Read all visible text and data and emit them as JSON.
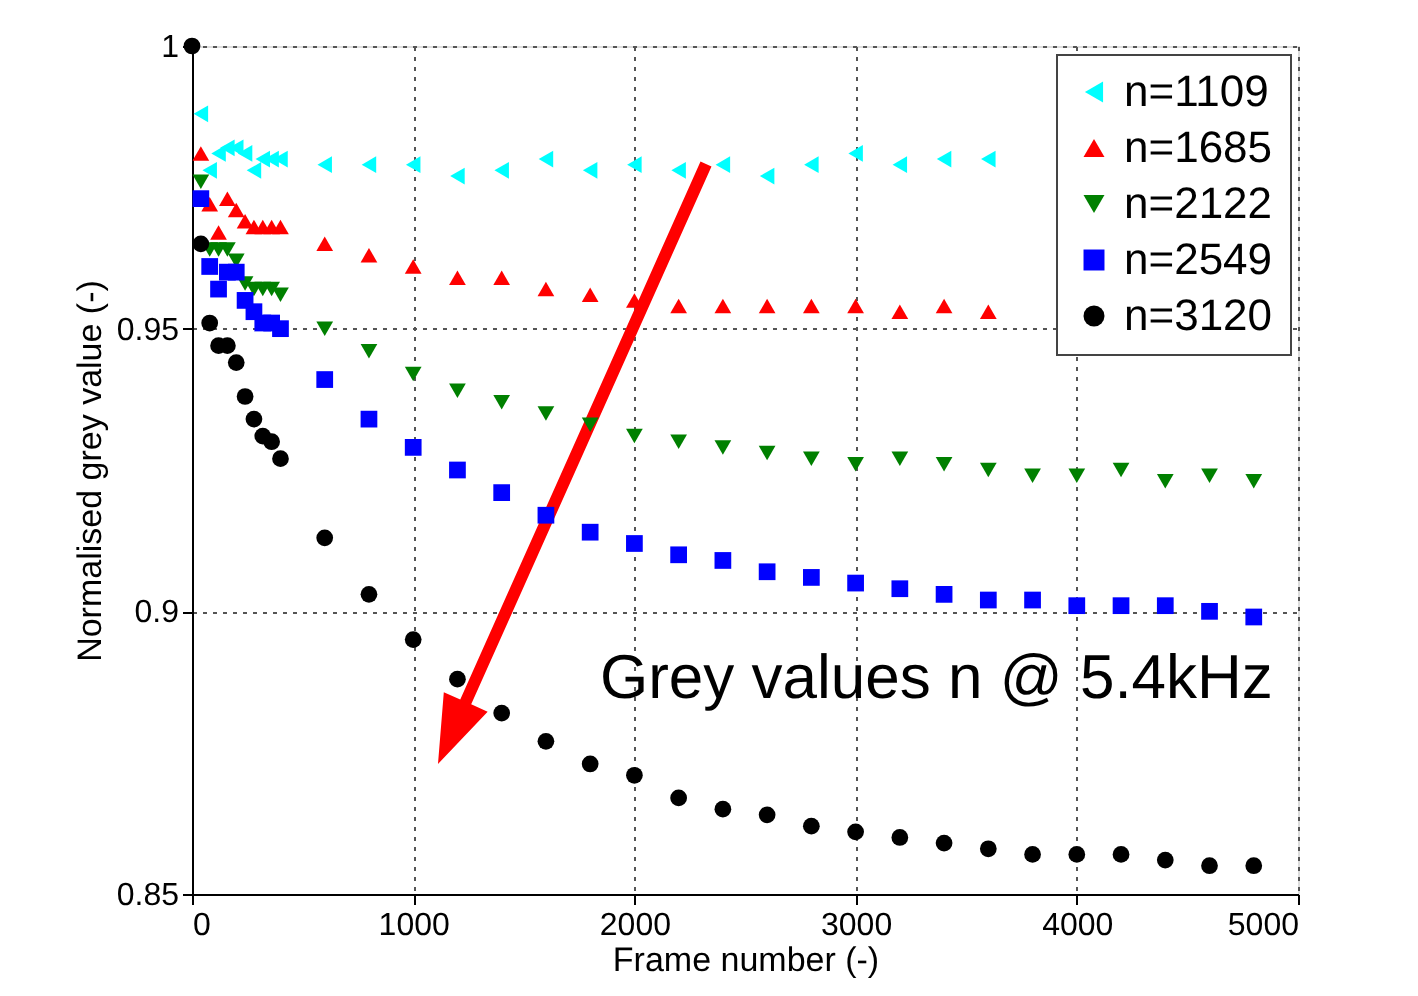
{
  "chart_data": {
    "type": "scatter",
    "xlabel": "Frame number (-)",
    "ylabel": "Normalised grey value (-)",
    "x": [
      0,
      40,
      80,
      120,
      160,
      200,
      240,
      280,
      320,
      360,
      400,
      600,
      800,
      1000,
      1200,
      1400,
      1600,
      1800,
      2000,
      2200,
      2400,
      2600,
      2800,
      3000,
      3200,
      3400,
      3600,
      3800,
      4000,
      4200,
      4400,
      4600,
      4800
    ],
    "series": [
      {
        "name": "n=1109",
        "color": "#00ffff",
        "marker": "triangle-left",
        "values": [
          null,
          0.988,
          0.978,
          0.981,
          0.982,
          0.982,
          0.981,
          0.978,
          0.98,
          0.98,
          0.98,
          0.979,
          0.979,
          0.979,
          0.977,
          0.978,
          0.98,
          0.978,
          0.979,
          0.978,
          0.979,
          0.977,
          0.979,
          0.981,
          0.979,
          0.98,
          0.98,
          null,
          null,
          null,
          null,
          null,
          null
        ]
      },
      {
        "name": "n=1685",
        "color": "#ff0000",
        "marker": "triangle",
        "values": [
          null,
          0.981,
          0.972,
          0.967,
          0.973,
          0.971,
          0.969,
          0.968,
          0.968,
          0.968,
          0.968,
          0.965,
          0.963,
          0.961,
          0.959,
          0.959,
          0.957,
          0.956,
          0.955,
          0.954,
          0.954,
          0.954,
          0.954,
          0.954,
          0.953,
          0.954,
          0.953,
          null,
          null,
          null,
          null,
          null,
          null
        ]
      },
      {
        "name": "n=2122",
        "color": "#008000",
        "marker": "triangle-down",
        "values": [
          null,
          0.976,
          0.964,
          0.964,
          0.964,
          0.962,
          0.958,
          0.957,
          0.957,
          0.957,
          0.956,
          0.95,
          0.946,
          0.942,
          0.939,
          0.937,
          0.935,
          0.933,
          0.931,
          0.93,
          0.929,
          0.928,
          0.927,
          0.926,
          0.927,
          0.926,
          0.925,
          0.924,
          0.924,
          0.925,
          0.923,
          0.924,
          0.923
        ]
      },
      {
        "name": "n=2549",
        "color": "#0000ff",
        "marker": "square",
        "values": [
          null,
          0.973,
          0.961,
          0.957,
          0.96,
          0.96,
          0.955,
          0.953,
          0.951,
          0.951,
          0.95,
          0.941,
          0.934,
          0.929,
          0.925,
          0.921,
          0.917,
          0.914,
          0.912,
          0.91,
          0.909,
          0.907,
          0.906,
          0.905,
          0.904,
          0.903,
          0.902,
          0.902,
          0.901,
          0.901,
          0.901,
          0.9,
          0.899
        ]
      },
      {
        "name": "n=3120",
        "color": "#000000",
        "marker": "circle",
        "values": [
          1.0,
          0.965,
          0.951,
          0.947,
          0.947,
          0.944,
          0.938,
          0.934,
          0.931,
          0.93,
          0.927,
          0.913,
          0.903,
          0.895,
          0.888,
          0.882,
          0.877,
          0.873,
          0.871,
          0.867,
          0.865,
          0.864,
          0.862,
          0.861,
          0.86,
          0.859,
          0.858,
          0.857,
          0.857,
          0.857,
          0.856,
          0.855,
          0.855
        ]
      }
    ],
    "xlim": [
      0,
      5000
    ],
    "ylim": [
      0.85,
      1
    ],
    "xticks": [
      0,
      1000,
      2000,
      3000,
      4000,
      5000
    ],
    "yticks": [
      0.85,
      0.9,
      0.95,
      1
    ],
    "grid": true,
    "legend": "top right",
    "annotations": [
      "Grey values n @ 5.4kHz"
    ]
  }
}
